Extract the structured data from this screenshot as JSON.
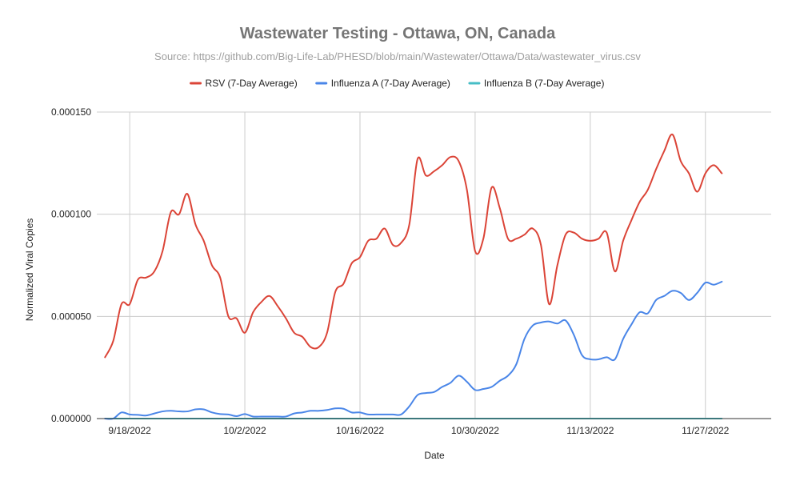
{
  "chart_data": {
    "type": "line",
    "title": "Wastewater Testing - Ottawa, ON, Canada",
    "subtitle": "Source: https://github.com/Big-Life-Lab/PHESD/blob/main/Wastewater/Ottawa/Data/wastewater_virus.csv",
    "xlabel": "Date",
    "ylabel": "Normalized Viral Copies",
    "x_range": [
      -4,
      78
    ],
    "ylim": [
      0,
      0.00015
    ],
    "y_ticks": [
      {
        "value": 0,
        "label": "0.000000"
      },
      {
        "value": 5e-05,
        "label": "0.000050"
      },
      {
        "value": 0.0001,
        "label": "0.000100"
      },
      {
        "value": 0.00015,
        "label": "0.000150"
      }
    ],
    "x_ticks": [
      {
        "day": 0,
        "label": "9/18/2022"
      },
      {
        "day": 14,
        "label": "10/2/2022"
      },
      {
        "day": 28,
        "label": "10/16/2022"
      },
      {
        "day": 42,
        "label": "10/30/2022"
      },
      {
        "day": 56,
        "label": "11/13/2022"
      },
      {
        "day": 70,
        "label": "11/27/2022"
      }
    ],
    "grid": true,
    "legend_position": "top",
    "x_days": [
      -3,
      -2,
      -1,
      0,
      1,
      2,
      3,
      4,
      5,
      6,
      7,
      8,
      9,
      10,
      11,
      12,
      13,
      14,
      15,
      16,
      17,
      18,
      19,
      20,
      21,
      22,
      23,
      24,
      25,
      26,
      27,
      28,
      29,
      30,
      31,
      32,
      33,
      34,
      35,
      36,
      37,
      38,
      39,
      40,
      41,
      42,
      43,
      44,
      45,
      46,
      47,
      48,
      49,
      50,
      51,
      52,
      53,
      54,
      55,
      56,
      57,
      58,
      59,
      60,
      61,
      62,
      63,
      64,
      65,
      66,
      67,
      68,
      69,
      70,
      71,
      72
    ],
    "series": [
      {
        "name": "RSV (7-Day Average)",
        "color": "#db4437",
        "values": [
          3e-05,
          3.8e-05,
          5.6e-05,
          5.6e-05,
          6.8e-05,
          6.9e-05,
          7.2e-05,
          8.2e-05,
          0.000101,
          0.0001,
          0.00011,
          9.5e-05,
          8.7e-05,
          7.5e-05,
          6.9e-05,
          5e-05,
          4.9e-05,
          4.2e-05,
          5.2e-05,
          5.7e-05,
          6e-05,
          5.5e-05,
          4.9e-05,
          4.2e-05,
          4e-05,
          3.5e-05,
          3.5e-05,
          4.2e-05,
          6.2e-05,
          6.6e-05,
          7.6e-05,
          7.9e-05,
          8.7e-05,
          8.8e-05,
          9.3e-05,
          8.5e-05,
          8.6e-05,
          9.5e-05,
          0.000127,
          0.000119,
          0.000121,
          0.000124,
          0.000128,
          0.000126,
          0.000112,
          8.2e-05,
          8.8e-05,
          0.000113,
          0.000103,
          8.8e-05,
          8.8e-05,
          9e-05,
          9.3e-05,
          8.5e-05,
          5.6e-05,
          7.5e-05,
          9e-05,
          9.1e-05,
          8.8e-05,
          8.7e-05,
          8.8e-05,
          9.1e-05,
          7.2e-05,
          8.7e-05,
          9.7e-05,
          0.000106,
          0.000112,
          0.000122,
          0.000131,
          0.000139,
          0.000126,
          0.00012,
          0.000111,
          0.00012,
          0.000124,
          0.00012
        ]
      },
      {
        "name": "Influenza A (7-Day Average)",
        "color": "#4a86e8",
        "values": [
          0,
          0,
          3e-06,
          2e-06,
          1.8e-06,
          1.5e-06,
          2.5e-06,
          3.5e-06,
          3.8e-06,
          3.5e-06,
          3.5e-06,
          4.5e-06,
          4.5e-06,
          3e-06,
          2.2e-06,
          2e-06,
          1.2e-06,
          2.2e-06,
          1e-06,
          1e-06,
          1e-06,
          1e-06,
          1e-06,
          2.5e-06,
          3e-06,
          3.8e-06,
          3.8e-06,
          4.2e-06,
          5e-06,
          4.8e-06,
          3e-06,
          3e-06,
          2e-06,
          2e-06,
          2e-06,
          2e-06,
          2e-06,
          6e-06,
          1.15e-05,
          1.25e-05,
          1.3e-05,
          1.55e-05,
          1.75e-05,
          2.1e-05,
          1.8e-05,
          1.4e-05,
          1.45e-05,
          1.55e-05,
          1.85e-05,
          2.1e-05,
          2.65e-05,
          3.9e-05,
          4.55e-05,
          4.7e-05,
          4.75e-05,
          4.65e-05,
          4.8e-05,
          4.1e-05,
          3.1e-05,
          2.9e-05,
          2.9e-05,
          3e-05,
          2.9e-05,
          3.9e-05,
          4.6e-05,
          5.2e-05,
          5.15e-05,
          5.8e-05,
          6e-05,
          6.25e-05,
          6.15e-05,
          5.8e-05,
          6.15e-05,
          6.65e-05,
          6.55e-05,
          6.7e-05
        ]
      },
      {
        "name": "Influenza B (7-Day Average)",
        "color": "#46bdc6",
        "values": [
          0,
          0,
          0,
          0,
          0,
          0,
          0,
          0,
          0,
          0,
          0,
          0,
          0,
          0,
          0,
          0,
          0,
          0,
          0,
          0,
          0,
          0,
          0,
          0,
          0,
          0,
          0,
          0,
          0,
          0,
          0,
          0,
          0,
          0,
          0,
          0,
          0,
          0,
          0,
          0,
          0,
          0,
          0,
          0,
          0,
          0,
          0,
          0,
          0,
          0,
          0,
          0,
          0,
          0,
          0,
          0,
          0,
          0,
          0,
          0,
          0,
          0,
          0,
          0,
          0,
          0,
          0,
          0,
          0,
          0,
          0,
          0,
          0,
          0,
          0,
          0
        ]
      }
    ]
  }
}
